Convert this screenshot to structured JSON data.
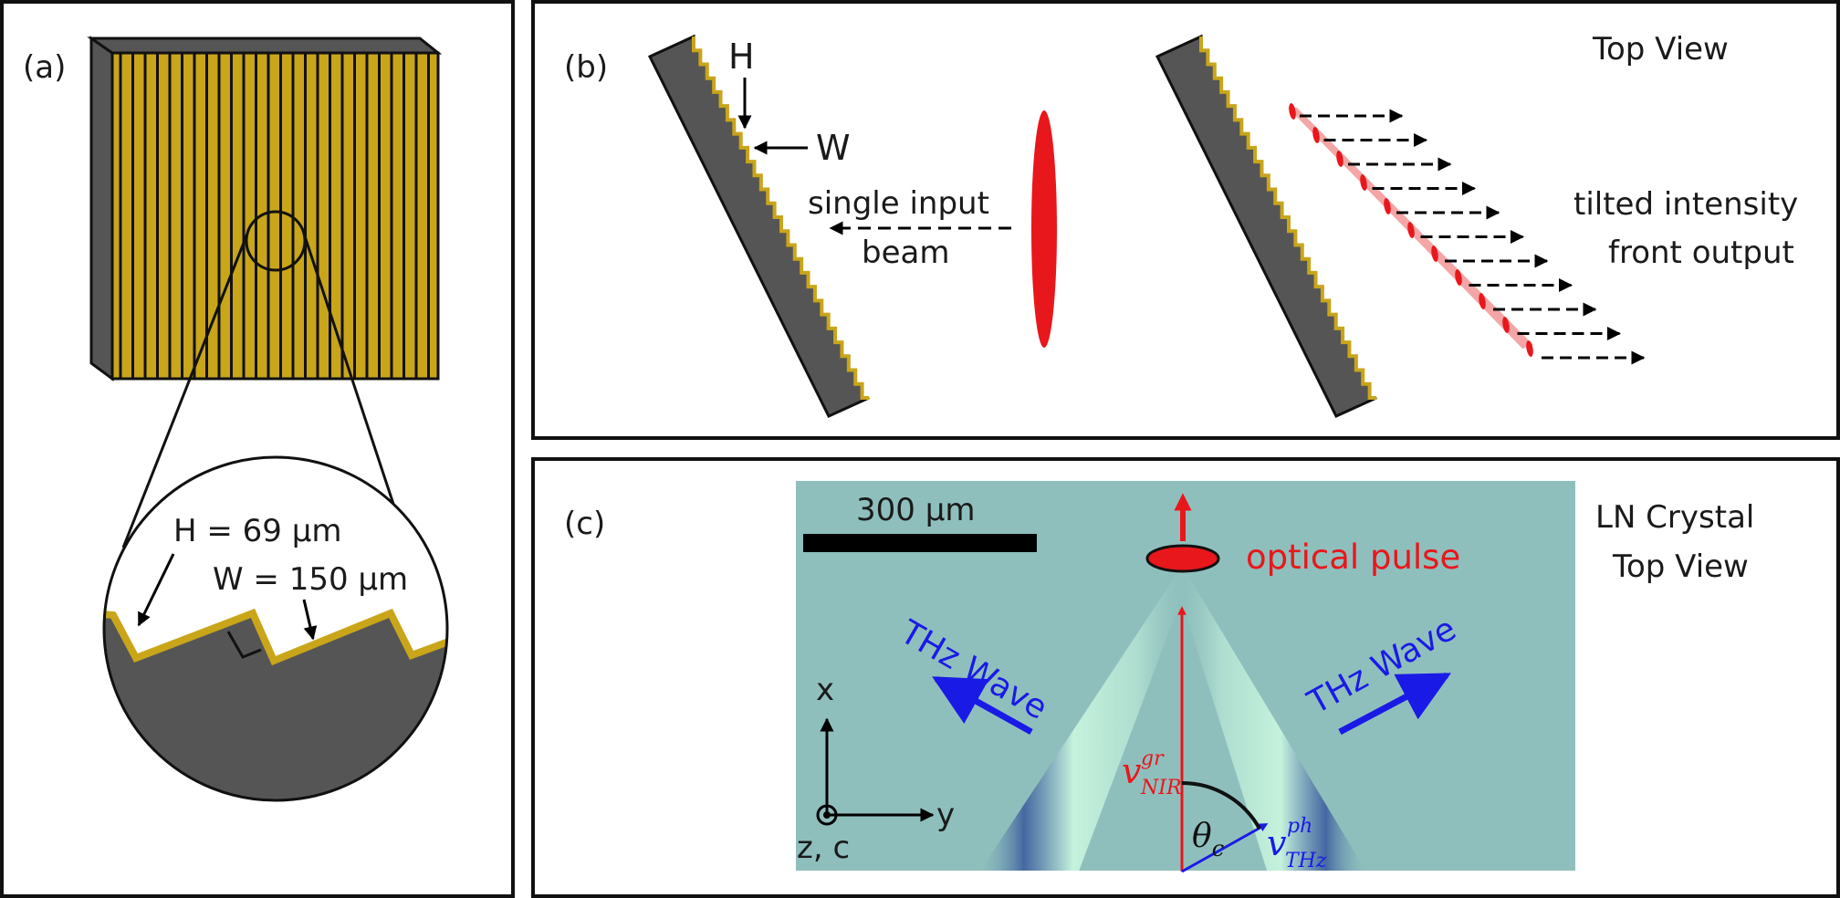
{
  "panels": {
    "a": {
      "label": "(a)",
      "h_label": "H = 69 μm",
      "w_label": "W = 150 μm"
    },
    "b": {
      "label": "(b)",
      "view_label": "Top View",
      "h_marker": "H",
      "w_marker": "W",
      "input_line1": "single input",
      "input_line2": "beam",
      "output_line1": "tilted intensity",
      "output_line2": "front output"
    },
    "c": {
      "label": "(c)",
      "scale_bar": "300 μm",
      "pulse_label": "optical pulse",
      "view_line1": "LN Crystal",
      "view_line2": "Top View",
      "thz_left": "THz Wave",
      "thz_right": "THz Wave",
      "axis_x": "x",
      "axis_y": "y",
      "axis_z": "z, c",
      "v_nir": "v",
      "v_nir_sup": "gr",
      "v_nir_sub": "NIR",
      "v_thz": "v",
      "v_thz_sup": "ph",
      "v_thz_sub": "THz",
      "theta": "θ",
      "theta_sub": "c"
    }
  },
  "colors": {
    "grating_gold": "#c9a51a",
    "grating_dark": "#595959",
    "pulse_red": "#e8171c",
    "beam_pink": "#f4a6a6",
    "thz_blue": "#1a1ae6",
    "crystal_bg": "#8fbfbd",
    "wave_light": "#c4f2dc",
    "wave_dark": "#3d5e9e"
  }
}
